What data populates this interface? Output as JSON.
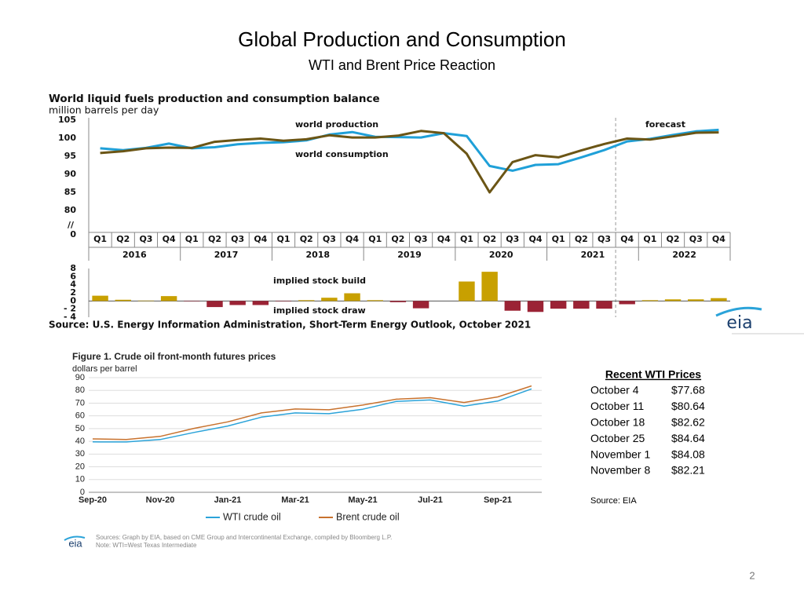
{
  "title": "Global Production and Consumption",
  "subtitle": "WTI and Brent Price Reaction",
  "logo": "eia",
  "chart_data": [
    {
      "type": "line",
      "title": "World liquid fuels production and consumption balance",
      "subtitle": "million barrels per day",
      "categories": [
        "Q1",
        "Q2",
        "Q3",
        "Q4",
        "Q1",
        "Q2",
        "Q3",
        "Q4",
        "Q1",
        "Q2",
        "Q3",
        "Q4",
        "Q1",
        "Q2",
        "Q3",
        "Q4",
        "Q1",
        "Q2",
        "Q3",
        "Q4",
        "Q1",
        "Q2",
        "Q3",
        "Q4",
        "Q1",
        "Q2",
        "Q3",
        "Q4"
      ],
      "groups": [
        "2016",
        "2017",
        "2018",
        "2019",
        "2020",
        "2021",
        "2022"
      ],
      "series": [
        {
          "name": "world production",
          "color": "#1fa0d8",
          "values": [
            97.2,
            96.7,
            97.3,
            98.5,
            97.2,
            97.5,
            98.3,
            98.7,
            98.9,
            99.4,
            101.0,
            101.7,
            100.4,
            100.3,
            100.2,
            101.4,
            100.6,
            92.3,
            91.0,
            92.6,
            92.8,
            94.7,
            96.7,
            99.1,
            99.8,
            100.9,
            101.9,
            102.3
          ]
        },
        {
          "name": "world consumption",
          "color": "#6b5515",
          "values": [
            95.9,
            96.4,
            97.2,
            97.4,
            97.3,
            99.0,
            99.5,
            99.9,
            99.3,
            99.7,
            100.8,
            100.2,
            100.2,
            100.7,
            102.0,
            101.4,
            95.7,
            85.0,
            93.4,
            95.3,
            94.7,
            96.6,
            98.4,
            99.9,
            99.6,
            100.5,
            101.5,
            101.6
          ]
        }
      ],
      "annotations": [
        "forecast"
      ],
      "ylim": [
        80,
        105
      ],
      "yticks": [
        80,
        85,
        90,
        95,
        100,
        105
      ],
      "y_break": {
        "mark": "//",
        "tick": 0
      },
      "grid": false
    },
    {
      "type": "bar",
      "pos_color": "#c8a000",
      "neg_color": "#9b2335",
      "values": [
        1.3,
        0.3,
        0.1,
        1.2,
        -0.1,
        -1.5,
        -1.0,
        -1.0,
        -0.1,
        0.2,
        0.8,
        1.9,
        0.2,
        -0.3,
        -1.8,
        0.0,
        4.8,
        7.2,
        -2.4,
        -2.7,
        -1.9,
        -1.9,
        -1.9,
        -0.8,
        0.2,
        0.4,
        0.4,
        0.7
      ],
      "annotations": [
        "implied stock  build",
        "implied stock draw"
      ],
      "ylim": [
        -4,
        8
      ],
      "yticks": [
        8,
        6,
        4,
        2,
        0,
        {
          "value": -2,
          "label": "- 2"
        },
        {
          "value": -4,
          "label": "- 4"
        }
      ],
      "source": "Source: U.S. Energy Information Administration, Short-Term Energy Outlook, October 2021"
    },
    {
      "type": "line",
      "title": "Figure 1. Crude oil front-month futures prices",
      "subtitle": "dollars per barrel",
      "categories": [
        "Sep-20",
        null,
        "Nov-20",
        null,
        "Jan-21",
        null,
        "Mar-21",
        null,
        "May-21",
        null,
        "Jul-21",
        null,
        "Sep-21",
        null
      ],
      "series": [
        {
          "name": "WTI crude oil",
          "color": "#2ba3d9",
          "values": [
            39.6,
            39.5,
            41.4,
            47.0,
            52.0,
            59.0,
            62.3,
            61.7,
            65.2,
            71.4,
            72.5,
            67.7,
            71.6,
            81.2
          ]
        },
        {
          "name": "Brent crude oil",
          "color": "#c8722e",
          "values": [
            41.9,
            41.4,
            43.9,
            50.2,
            55.3,
            62.3,
            65.4,
            64.8,
            68.5,
            73.1,
            74.3,
            70.5,
            74.9,
            83.5
          ]
        }
      ],
      "ylim": [
        0,
        90
      ],
      "yticks": [
        0,
        10,
        20,
        30,
        40,
        50,
        60,
        70,
        80,
        90
      ],
      "grid": true,
      "legend": "bottom",
      "notes": [
        "Sources: Graph by EIA, based on CME Group and Intercontinental Exchange, compiled by Bloomberg L.P.",
        "Note: WTI=West Texas Intermediate"
      ]
    }
  ],
  "table": {
    "title": "Recent WTI Prices",
    "rows": [
      [
        "October 4",
        "$77.68"
      ],
      [
        "October 11",
        "$80.64"
      ],
      [
        "October 18",
        "$82.62"
      ],
      [
        "October 25",
        "$84.64"
      ],
      [
        "November 1",
        "$84.08"
      ],
      [
        "November 8",
        "$82.21"
      ]
    ],
    "source": "Source: EIA"
  },
  "page_number": 2
}
